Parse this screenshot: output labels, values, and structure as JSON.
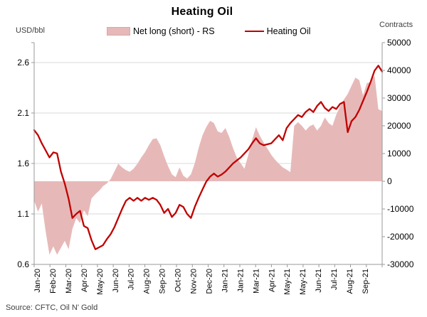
{
  "title": "Heating Oil",
  "left_axis_unit": "USD/bbl",
  "right_axis_unit": "Contracts",
  "source": "Source: CFTC, Oil N' Gold",
  "legend": {
    "area_label": "Net long (short) - RS",
    "line_label": "Heating Oil"
  },
  "colors": {
    "area_fill": "#e6b9b8",
    "area_edge": "#d9a7a6",
    "line": "#c00000",
    "gridline": "#d9d9d9",
    "axis": "#9a9a9a",
    "text": "#000000"
  },
  "chart_data": {
    "type": "combo",
    "frequency": "weekly",
    "x_range_note": "weekly points from Jan-2020 to early Oct-2021",
    "x_tick_labels": [
      "Jan-20",
      "Feb-20",
      "Mar-20",
      "Apr-20",
      "May-20",
      "Jun-20",
      "Jul-20",
      "Aug-20",
      "Sep-20",
      "Oct-20",
      "Nov-20",
      "Dec-20",
      "Jan-21",
      "Jan-21",
      "Mar-21",
      "Apr-21",
      "May-21",
      "May-21",
      "Jun-21",
      "Jul-21",
      "Aug-21",
      "Sep-21"
    ],
    "left_axis": {
      "label": "USD/bbl",
      "ticks": [
        2.6,
        2.1,
        1.6,
        1.1,
        0.6
      ],
      "range": [
        0.6,
        2.8
      ]
    },
    "right_axis": {
      "label": "Contracts",
      "ticks": [
        50000,
        40000,
        30000,
        20000,
        10000,
        0,
        -10000,
        -20000,
        -30000
      ],
      "range": [
        -30000,
        50000
      ]
    },
    "series": [
      {
        "name": "Net long (short) - RS",
        "type": "area",
        "axis": "right",
        "values": [
          -7000,
          -11000,
          -8000,
          -18000,
          -26500,
          -23500,
          -26500,
          -24000,
          -21500,
          -24500,
          -17200,
          -13300,
          -15100,
          -10500,
          -12600,
          -6200,
          -4700,
          -3400,
          -1800,
          -800,
          800,
          3500,
          6300,
          5000,
          4000,
          3400,
          4500,
          6300,
          8600,
          10500,
          13000,
          15200,
          15500,
          13000,
          9000,
          5500,
          2500,
          1500,
          5000,
          2000,
          1000,
          2500,
          6500,
          12000,
          16500,
          19500,
          21800,
          21000,
          18000,
          17400,
          19200,
          16000,
          12000,
          8500,
          6500,
          4500,
          9500,
          15000,
          19500,
          16500,
          14000,
          11800,
          9500,
          7800,
          6300,
          5000,
          4200,
          3300,
          20000,
          21300,
          20000,
          18300,
          19800,
          20500,
          18300,
          20000,
          23000,
          21000,
          20000,
          24000,
          27000,
          29500,
          31500,
          34500,
          37400,
          36500,
          31000,
          35400,
          35700,
          38200,
          26000,
          25300
        ]
      },
      {
        "name": "Heating Oil",
        "type": "line",
        "axis": "left",
        "values": [
          1.93,
          1.88,
          1.8,
          1.73,
          1.66,
          1.71,
          1.7,
          1.52,
          1.4,
          1.25,
          1.06,
          1.1,
          1.13,
          0.98,
          0.96,
          0.84,
          0.75,
          0.77,
          0.79,
          0.85,
          0.9,
          0.97,
          1.06,
          1.15,
          1.23,
          1.26,
          1.23,
          1.26,
          1.23,
          1.26,
          1.24,
          1.26,
          1.24,
          1.19,
          1.11,
          1.15,
          1.07,
          1.11,
          1.19,
          1.17,
          1.1,
          1.06,
          1.17,
          1.26,
          1.34,
          1.42,
          1.47,
          1.5,
          1.47,
          1.49,
          1.52,
          1.56,
          1.6,
          1.63,
          1.66,
          1.7,
          1.74,
          1.8,
          1.85,
          1.8,
          1.78,
          1.79,
          1.8,
          1.84,
          1.88,
          1.83,
          1.95,
          2.0,
          2.04,
          2.08,
          2.06,
          2.11,
          2.14,
          2.11,
          2.17,
          2.21,
          2.15,
          2.12,
          2.16,
          2.14,
          2.19,
          2.21,
          1.91,
          2.02,
          2.06,
          2.13,
          2.22,
          2.31,
          2.41,
          2.52,
          2.57,
          2.51
        ]
      }
    ]
  }
}
